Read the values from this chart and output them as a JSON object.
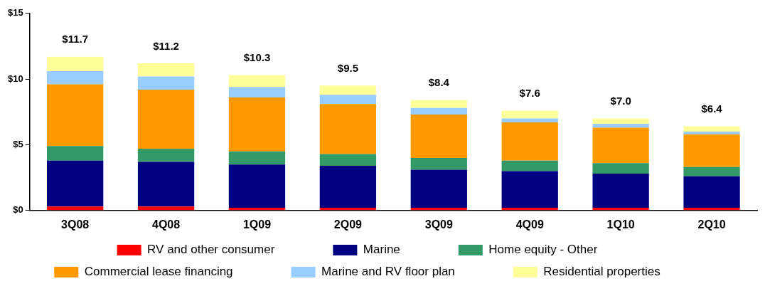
{
  "chart_data": {
    "type": "bar",
    "stacked": true,
    "categories": [
      "3Q08",
      "4Q08",
      "1Q09",
      "2Q09",
      "3Q09",
      "4Q09",
      "1Q10",
      "2Q10"
    ],
    "series": [
      {
        "name": "RV and other consumer",
        "color": "#ff0000",
        "values": [
          0.3,
          0.3,
          0.2,
          0.2,
          0.2,
          0.2,
          0.2,
          0.2
        ]
      },
      {
        "name": "Marine",
        "color": "#000080",
        "values": [
          3.5,
          3.4,
          3.3,
          3.2,
          2.9,
          2.8,
          2.6,
          2.4
        ]
      },
      {
        "name": "Home equity - Other",
        "color": "#339966",
        "values": [
          1.1,
          1.0,
          1.0,
          0.9,
          0.9,
          0.8,
          0.8,
          0.7
        ]
      },
      {
        "name": "Commercial lease financing",
        "color": "#ff9900",
        "values": [
          4.7,
          4.5,
          4.1,
          3.8,
          3.3,
          2.9,
          2.7,
          2.5
        ]
      },
      {
        "name": "Marine and RV floor plan",
        "color": "#99ccff",
        "values": [
          1.0,
          1.0,
          0.8,
          0.7,
          0.5,
          0.3,
          0.3,
          0.2
        ]
      },
      {
        "name": "Residential properties",
        "color": "#ffff99",
        "values": [
          1.1,
          1.0,
          0.9,
          0.7,
          0.6,
          0.6,
          0.4,
          0.4
        ]
      }
    ],
    "totals": [
      "$11.7",
      "$11.2",
      "$10.3",
      "$9.5",
      "$8.4",
      "$7.6",
      "$7.0",
      "$6.4"
    ],
    "ylim": [
      0,
      15
    ],
    "yticks": [
      {
        "value": 0,
        "label": "$0"
      },
      {
        "value": 5,
        "label": "$5"
      },
      {
        "value": 10,
        "label": "$10"
      },
      {
        "value": 15,
        "label": "$15"
      }
    ],
    "grid": false,
    "legend": "bottom"
  }
}
